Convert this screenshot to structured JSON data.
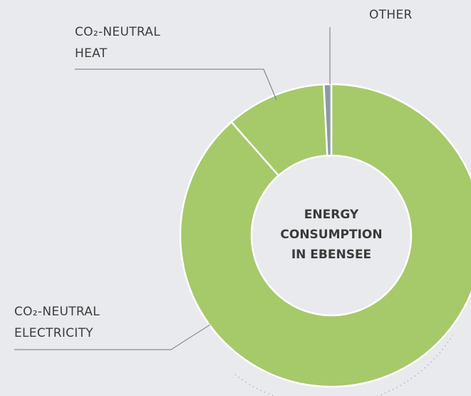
{
  "chart_data": {
    "type": "pie",
    "donut": true,
    "title": "ENERGY\nCONSUMPTION\nIN EBENSEE",
    "categories": [
      "CO₂-NEUTRAL\nELECTRICITY",
      "CO₂-NEUTRAL\nHEAT",
      "OTHER"
    ],
    "values": [
      88.5,
      10.7,
      0.8
    ],
    "colors": [
      "#a6c96a",
      "#a6c96a",
      "#8c9aa6"
    ]
  }
}
